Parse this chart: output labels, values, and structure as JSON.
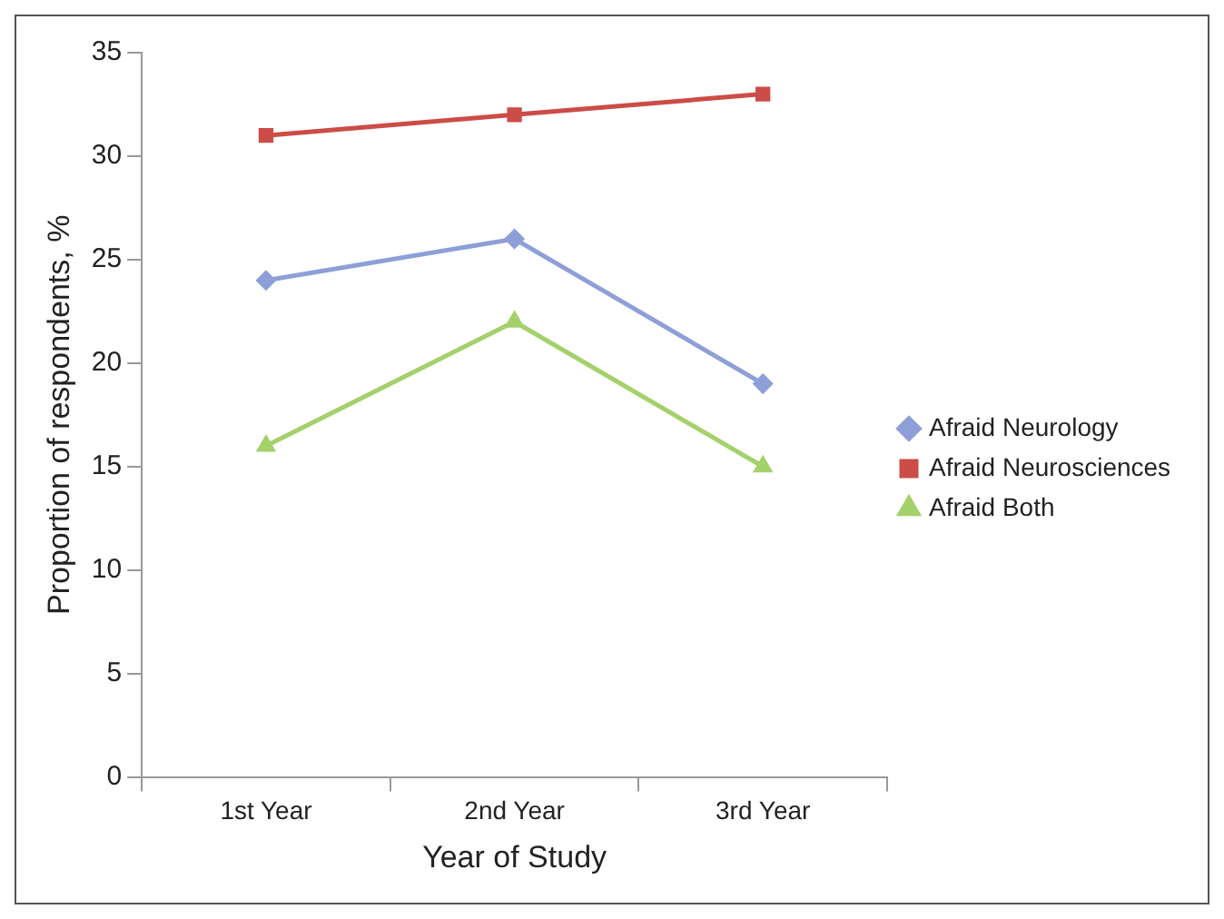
{
  "chart_data": {
    "type": "line",
    "xlabel": "Year of Study",
    "ylabel": "Proportion of respondents, %",
    "categories": [
      "1st Year",
      "2nd Year",
      "3rd Year"
    ],
    "series": [
      {
        "name": "Afraid Neurology",
        "color": "#8e9fd8",
        "values": [
          24,
          26,
          19
        ],
        "marker": "diamond"
      },
      {
        "name": "Afraid Neurosciences",
        "color": "#cc4c47",
        "values": [
          31,
          32,
          33
        ],
        "marker": "square"
      },
      {
        "name": "Afraid Both",
        "color": "#a3d16a",
        "values": [
          16,
          22,
          15
        ],
        "marker": "triangle"
      }
    ],
    "ylim": [
      0,
      35
    ],
    "yticks": [
      0,
      5,
      10,
      15,
      20,
      25,
      30,
      35
    ],
    "grid": false,
    "legend": "right",
    "line_style": "solid"
  }
}
